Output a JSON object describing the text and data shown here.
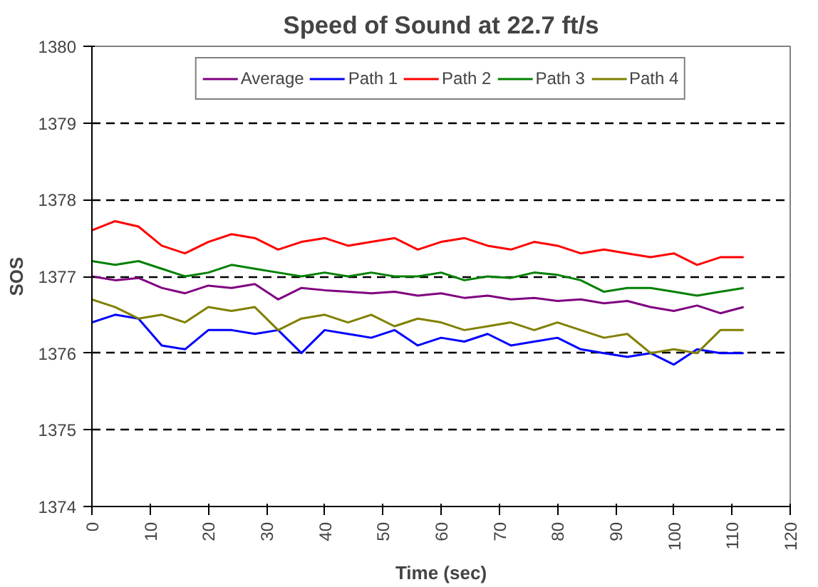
{
  "chart_data": {
    "type": "line",
    "title": "Speed of Sound at 22.7 ft/s",
    "xlabel": "Time (sec)",
    "ylabel": "SOS",
    "x": [
      0,
      4,
      8,
      12,
      16,
      20,
      24,
      28,
      32,
      36,
      40,
      44,
      48,
      52,
      56,
      60,
      64,
      68,
      72,
      76,
      80,
      84,
      88,
      92,
      96,
      100,
      104,
      108,
      112
    ],
    "series": [
      {
        "name": "Average",
        "color": "#800080",
        "values": [
          1377.0,
          1376.95,
          1376.98,
          1376.85,
          1376.78,
          1376.88,
          1376.85,
          1376.9,
          1376.7,
          1376.85,
          1376.82,
          1376.8,
          1376.78,
          1376.8,
          1376.75,
          1376.78,
          1376.72,
          1376.75,
          1376.7,
          1376.72,
          1376.68,
          1376.7,
          1376.65,
          1376.68,
          1376.6,
          1376.55,
          1376.62,
          1376.52,
          1376.6
        ]
      },
      {
        "name": "Path 1",
        "color": "#0000ff",
        "values": [
          1376.4,
          1376.5,
          1376.45,
          1376.1,
          1376.05,
          1376.3,
          1376.3,
          1376.25,
          1376.3,
          1376.0,
          1376.3,
          1376.25,
          1376.2,
          1376.3,
          1376.1,
          1376.2,
          1376.15,
          1376.25,
          1376.1,
          1376.15,
          1376.2,
          1376.05,
          1376.0,
          1375.95,
          1376.0,
          1375.85,
          1376.05,
          1376.0,
          1376.0
        ]
      },
      {
        "name": "Path 2",
        "color": "#ff0000",
        "values": [
          1377.6,
          1377.72,
          1377.65,
          1377.4,
          1377.3,
          1377.45,
          1377.55,
          1377.5,
          1377.35,
          1377.45,
          1377.5,
          1377.4,
          1377.45,
          1377.5,
          1377.35,
          1377.45,
          1377.5,
          1377.4,
          1377.35,
          1377.45,
          1377.4,
          1377.3,
          1377.35,
          1377.3,
          1377.25,
          1377.3,
          1377.15,
          1377.25,
          1377.25
        ]
      },
      {
        "name": "Path 3",
        "color": "#008000",
        "values": [
          1377.2,
          1377.15,
          1377.2,
          1377.1,
          1377.0,
          1377.05,
          1377.15,
          1377.1,
          1377.05,
          1377.0,
          1377.05,
          1377.0,
          1377.05,
          1377.0,
          1377.0,
          1377.05,
          1376.95,
          1377.0,
          1376.98,
          1377.05,
          1377.02,
          1376.95,
          1376.8,
          1376.85,
          1376.85,
          1376.8,
          1376.75,
          1376.8,
          1376.85
        ]
      },
      {
        "name": "Path 4",
        "color": "#808000",
        "values": [
          1376.7,
          1376.6,
          1376.45,
          1376.5,
          1376.4,
          1376.6,
          1376.55,
          1376.6,
          1376.3,
          1376.45,
          1376.5,
          1376.4,
          1376.5,
          1376.35,
          1376.45,
          1376.4,
          1376.3,
          1376.35,
          1376.4,
          1376.3,
          1376.4,
          1376.3,
          1376.2,
          1376.25,
          1376.0,
          1376.05,
          1376.0,
          1376.3,
          1376.3
        ]
      }
    ],
    "xlim": [
      0,
      120
    ],
    "xticks": [
      0,
      10,
      20,
      30,
      40,
      50,
      60,
      70,
      80,
      90,
      100,
      110,
      120
    ],
    "ylim": [
      1374,
      1380
    ],
    "yticks": [
      1374,
      1375,
      1376,
      1377,
      1378,
      1379,
      1380
    ],
    "grid": "y",
    "legend": "top",
    "marker": "none",
    "line_style": "solid"
  }
}
